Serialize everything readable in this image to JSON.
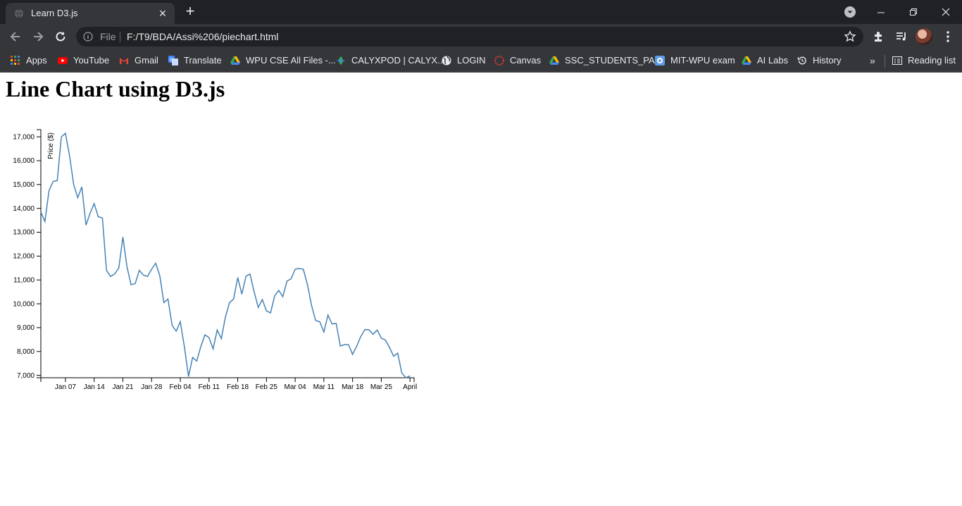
{
  "browser": {
    "tab_title": "Learn D3.js",
    "file_label": "File",
    "url": "F:/T9/BDA/Assi%206/piechart.html",
    "bookmarks": [
      {
        "label": "Apps",
        "icon": "apps-grid-icon"
      },
      {
        "label": "YouTube",
        "icon": "youtube-icon"
      },
      {
        "label": "Gmail",
        "icon": "gmail-icon"
      },
      {
        "label": "Translate",
        "icon": "translate-icon"
      },
      {
        "label": "WPU CSE All Files -...",
        "icon": "google-drive-icon"
      },
      {
        "label": "CALYXPOD | CALYX...",
        "icon": "calyxpod-icon"
      },
      {
        "label": "LOGIN",
        "icon": "globe-icon"
      },
      {
        "label": "Canvas",
        "icon": "canvas-icon"
      },
      {
        "label": "SSC_STUDENTS_PA...",
        "icon": "google-drive-icon"
      },
      {
        "label": "MIT-WPU exam",
        "icon": "exam-icon"
      },
      {
        "label": "AI Labs",
        "icon": "google-drive-icon"
      },
      {
        "label": "History",
        "icon": "history-icon"
      }
    ],
    "reading_list_label": "Reading list"
  },
  "page": {
    "heading": "Line Chart using D3.js"
  },
  "chart_data": {
    "type": "line",
    "title": "",
    "xlabel": "",
    "ylabel": "Price ($)",
    "color": "#4682b4",
    "ylim": [
      6900,
      17300
    ],
    "xlim": [
      "2018-01-01",
      "2018-04-02"
    ],
    "ytick_labels": [
      "7,000",
      "8,000",
      "9,000",
      "10,000",
      "11,000",
      "12,000",
      "13,000",
      "14,000",
      "15,000",
      "16,000",
      "17,000"
    ],
    "xtick_labels": [
      "Jan 07",
      "Jan 14",
      "Jan 21",
      "Jan 28",
      "Feb 04",
      "Feb 11",
      "Feb 18",
      "Feb 25",
      "Mar 04",
      "Mar 11",
      "Mar 18",
      "Mar 25",
      "April"
    ],
    "x": [
      "2018-01-01",
      "2018-01-02",
      "2018-01-03",
      "2018-01-04",
      "2018-01-05",
      "2018-01-06",
      "2018-01-07",
      "2018-01-08",
      "2018-01-09",
      "2018-01-10",
      "2018-01-11",
      "2018-01-12",
      "2018-01-13",
      "2018-01-14",
      "2018-01-15",
      "2018-01-16",
      "2018-01-17",
      "2018-01-18",
      "2018-01-19",
      "2018-01-20",
      "2018-01-21",
      "2018-01-22",
      "2018-01-23",
      "2018-01-24",
      "2018-01-25",
      "2018-01-26",
      "2018-01-27",
      "2018-01-28",
      "2018-01-29",
      "2018-01-30",
      "2018-01-31",
      "2018-02-01",
      "2018-02-02",
      "2018-02-03",
      "2018-02-04",
      "2018-02-05",
      "2018-02-06",
      "2018-02-07",
      "2018-02-08",
      "2018-02-09",
      "2018-02-10",
      "2018-02-11",
      "2018-02-12",
      "2018-02-13",
      "2018-02-14",
      "2018-02-15",
      "2018-02-16",
      "2018-02-17",
      "2018-02-18",
      "2018-02-19",
      "2018-02-20",
      "2018-02-21",
      "2018-02-22",
      "2018-02-23",
      "2018-02-24",
      "2018-02-25",
      "2018-02-26",
      "2018-02-27",
      "2018-02-28",
      "2018-03-01",
      "2018-03-02",
      "2018-03-03",
      "2018-03-04",
      "2018-03-05",
      "2018-03-06",
      "2018-03-07",
      "2018-03-08",
      "2018-03-09",
      "2018-03-10",
      "2018-03-11",
      "2018-03-12",
      "2018-03-13",
      "2018-03-14",
      "2018-03-15",
      "2018-03-16",
      "2018-03-17",
      "2018-03-18",
      "2018-03-19",
      "2018-03-20",
      "2018-03-21",
      "2018-03-22",
      "2018-03-23",
      "2018-03-24",
      "2018-03-25",
      "2018-03-26",
      "2018-03-27",
      "2018-03-28",
      "2018-03-29",
      "2018-03-30",
      "2018-03-31",
      "2018-04-01"
    ],
    "values": [
      13850,
      13450,
      14750,
      15130,
      15160,
      17000,
      17150,
      16200,
      15000,
      14450,
      14900,
      13300,
      13800,
      14200,
      13650,
      13600,
      11400,
      11150,
      11250,
      11500,
      12800,
      11550,
      10800,
      10850,
      11400,
      11200,
      11150,
      11450,
      11700,
      11180,
      10050,
      10200,
      9100,
      8850,
      9250,
      8200,
      6950,
      7750,
      7600,
      8200,
      8700,
      8580,
      8110,
      8900,
      8540,
      9450,
      10050,
      10200,
      11100,
      10400,
      11150,
      11250,
      10500,
      9850,
      10180,
      9700,
      9620,
      10330,
      10560,
      10300,
      10950,
      11050,
      11450,
      11480,
      11450,
      10800,
      9930,
      9300,
      9250,
      8820,
      9530,
      9150,
      9180,
      8230,
      8290,
      8290,
      7880,
      8220,
      8630,
      8920,
      8910,
      8720,
      8900,
      8560,
      8480,
      8170,
      7800,
      7930,
      7100,
      6900,
      6980
    ]
  }
}
